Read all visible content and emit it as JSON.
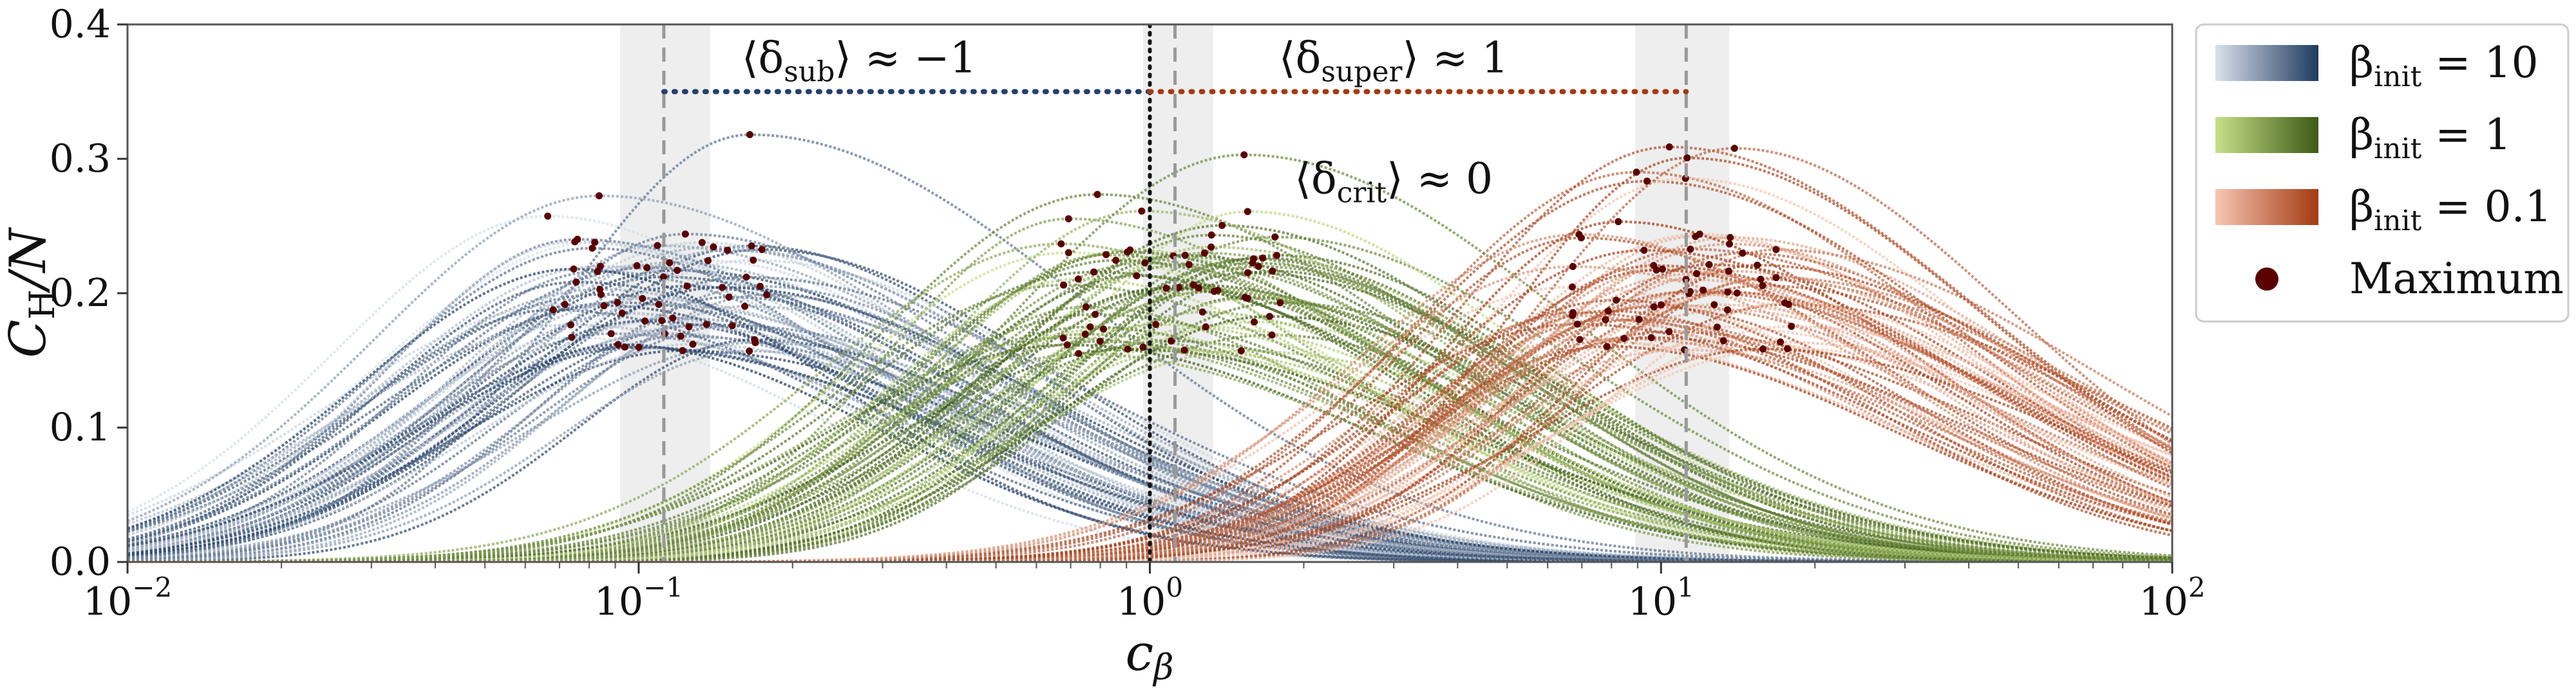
{
  "chart_data": {
    "type": "line",
    "xscale": "log",
    "xlim": [
      0.01,
      100
    ],
    "ylim": [
      0.0,
      0.4
    ],
    "xlabel": "c_β",
    "ylabel": "C_H/N",
    "xtick_base": "10",
    "xticks": [
      {
        "value": 0.01,
        "exp": "−2"
      },
      {
        "value": 0.1,
        "exp": "−1"
      },
      {
        "value": 1,
        "exp": "0"
      },
      {
        "value": 10,
        "exp": "1"
      },
      {
        "value": 100,
        "exp": "2"
      }
    ],
    "yticks": [
      {
        "value": 0.0,
        "label": "0.0"
      },
      {
        "value": 0.1,
        "label": "0.1"
      },
      {
        "value": 0.2,
        "label": "0.2"
      },
      {
        "value": 0.3,
        "label": "0.3"
      },
      {
        "value": 0.4,
        "label": "0.4"
      }
    ],
    "series": [
      {
        "name": "β_init = 10",
        "legend_base": "β",
        "legend_sub": "init",
        "legend_value": "= 10",
        "light": "#d8e1ec",
        "dark": "#1f3a5f",
        "peak_x": 0.11,
        "peak_spread": 0.22,
        "peak_y": 0.2,
        "width": 0.38,
        "n_curves": 60
      },
      {
        "name": "β_init = 1",
        "legend_base": "β",
        "legend_sub": "init",
        "legend_value": "= 1",
        "light": "#c6e08a",
        "dark": "#3d5a16",
        "peak_x": 1.1,
        "peak_spread": 0.22,
        "peak_y": 0.2,
        "width": 0.38,
        "n_curves": 60
      },
      {
        "name": "β_init = 0.1",
        "legend_base": "β",
        "legend_sub": "init",
        "legend_value": "= 0.1",
        "light": "#f6c6b2",
        "dark": "#a33a12",
        "peak_x": 11,
        "peak_spread": 0.22,
        "peak_y": 0.2,
        "width": 0.38,
        "n_curves": 60
      }
    ],
    "maximum_marker": {
      "label": "Maximum",
      "color": "#5a0000"
    },
    "vlines": [
      {
        "x": 0.112,
        "style": "dashed",
        "color": "#999999",
        "band": [
          0.092,
          0.138
        ]
      },
      {
        "x": 1.12,
        "style": "dashed",
        "color": "#999999",
        "band": [
          0.97,
          1.33
        ]
      },
      {
        "x": 11.2,
        "style": "dashed",
        "color": "#999999",
        "band": [
          8.9,
          13.6
        ]
      },
      {
        "x": 1.0,
        "style": "dotted",
        "color": "#111111"
      }
    ],
    "hlines": [
      {
        "y": 0.35,
        "x_from": 0.112,
        "x_to": 1.0,
        "color": "#24406b",
        "style": "dotted"
      },
      {
        "y": 0.35,
        "x_from": 1.0,
        "x_to": 11.2,
        "color": "#a33a12",
        "style": "dotted"
      }
    ],
    "annotations": [
      {
        "text": "⟨δ_sub⟩ ≈ −1",
        "base": "⟨δ",
        "sub": "sub",
        "rest": "⟩ ≈ −1",
        "x": 0.27,
        "y": 0.375
      },
      {
        "text": "⟨δ_super⟩ ≈ 1",
        "base": "⟨δ",
        "sub": "super",
        "rest": "⟩ ≈ 1",
        "x": 3.0,
        "y": 0.375
      },
      {
        "text": "⟨δ_crit⟩ ≈ 0",
        "base": "⟨δ",
        "sub": "crit",
        "rest": "⟩ ≈ 0",
        "x": 3.0,
        "y": 0.285
      }
    ]
  }
}
